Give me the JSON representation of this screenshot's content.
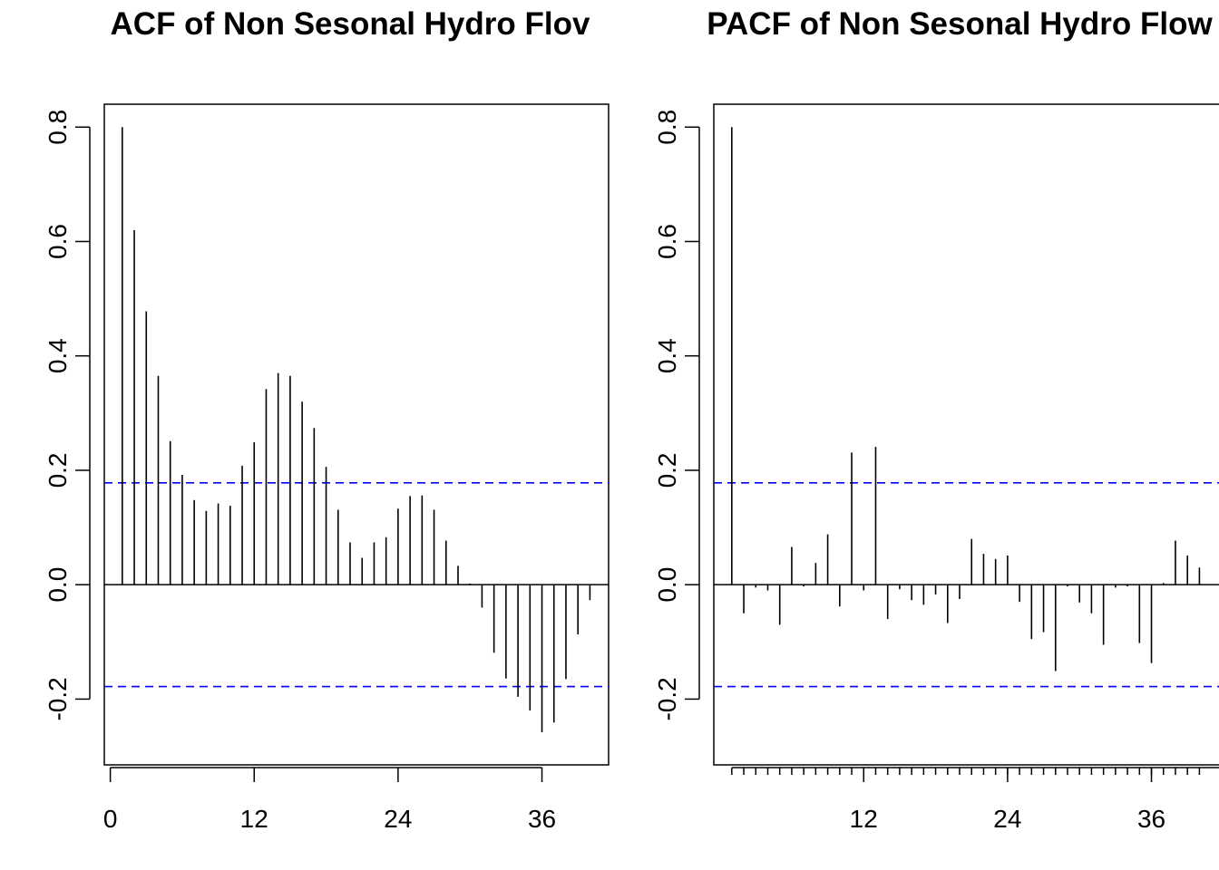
{
  "colors": {
    "bars": "#000000",
    "ci_line": "#0000ff",
    "frame": "#000000"
  },
  "chart_data": [
    {
      "type": "bar",
      "title": "ACF of Non Sesonal Hydro Flov",
      "xlabel": "",
      "ylabel": "",
      "ylim": [
        -0.315,
        0.84
      ],
      "xlim": [
        -0.5,
        41.5
      ],
      "x_ticks": [
        "0",
        "12",
        "24",
        "36"
      ],
      "y_ticks": [
        "-0.2",
        "0.0",
        "0.2",
        "0.4",
        "0.6",
        "0.8"
      ],
      "confidence_band": [
        0.178,
        -0.178
      ],
      "lags": [
        1,
        2,
        3,
        4,
        5,
        6,
        7,
        8,
        9,
        10,
        11,
        12,
        13,
        14,
        15,
        16,
        17,
        18,
        19,
        20,
        21,
        22,
        23,
        24,
        25,
        26,
        27,
        28,
        29,
        30,
        31,
        32,
        33,
        34,
        35,
        36,
        37,
        38,
        39,
        40
      ],
      "values": [
        0.8,
        0.62,
        0.478,
        0.365,
        0.251,
        0.192,
        0.148,
        0.129,
        0.142,
        0.138,
        0.208,
        0.249,
        0.342,
        0.37,
        0.365,
        0.32,
        0.274,
        0.206,
        0.131,
        0.074,
        0.047,
        0.074,
        0.083,
        0.133,
        0.155,
        0.156,
        0.131,
        0.077,
        0.033,
        0.002,
        -0.04,
        -0.119,
        -0.164,
        -0.196,
        -0.22,
        -0.258,
        -0.241,
        -0.165,
        -0.087,
        -0.027
      ]
    },
    {
      "type": "bar",
      "title": "PACF of Non Sesonal Hydro Flow",
      "xlabel": "",
      "ylabel": "",
      "ylim": [
        -0.315,
        0.84
      ],
      "xlim": [
        -0.5,
        41.5
      ],
      "x_ticks": [
        "12",
        "24",
        "36"
      ],
      "y_ticks": [
        "-0.2",
        "0.0",
        "0.2",
        "0.4",
        "0.6",
        "0.8"
      ],
      "confidence_band": [
        0.178,
        -0.178
      ],
      "lags": [
        1,
        2,
        3,
        4,
        5,
        6,
        7,
        8,
        9,
        10,
        11,
        12,
        13,
        14,
        15,
        16,
        17,
        18,
        19,
        20,
        21,
        22,
        23,
        24,
        25,
        26,
        27,
        28,
        29,
        30,
        31,
        32,
        33,
        34,
        35,
        36,
        37,
        38,
        39,
        40
      ],
      "values": [
        0.8,
        -0.05,
        -0.005,
        -0.01,
        -0.07,
        0.066,
        -0.003,
        0.038,
        0.088,
        -0.038,
        0.231,
        -0.01,
        0.241,
        -0.06,
        -0.008,
        -0.027,
        -0.035,
        -0.017,
        -0.067,
        -0.025,
        0.08,
        0.054,
        0.045,
        0.051,
        -0.03,
        -0.095,
        -0.083,
        -0.151,
        -0.003,
        -0.031,
        -0.05,
        -0.105,
        -0.005,
        -0.003,
        -0.102,
        -0.137,
        0.003,
        0.077,
        0.051,
        0.03
      ]
    }
  ]
}
